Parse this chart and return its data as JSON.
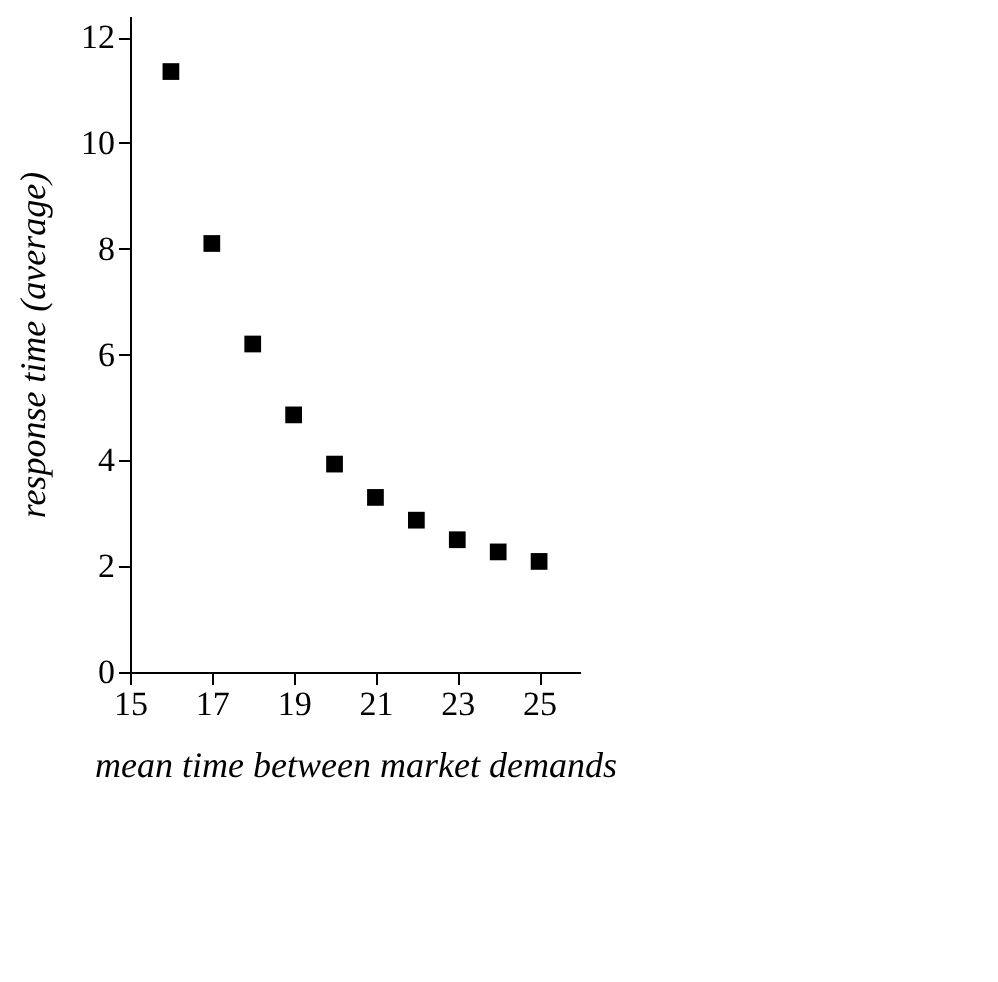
{
  "chart_data": {
    "type": "scatter",
    "xlabel": "mean time between market demands",
    "ylabel": "response time (average)",
    "x": [
      16,
      17,
      18,
      19,
      20,
      21,
      22,
      23,
      24,
      25
    ],
    "series": [
      {
        "color": "#000000",
        "values": [
          11.35,
          8.1,
          6.2,
          4.86,
          3.93,
          3.3,
          2.87,
          2.5,
          2.27,
          2.09
        ]
      }
    ],
    "xlim": [
      15,
      26
    ],
    "xticks": [
      15,
      17,
      19,
      21,
      23,
      25
    ],
    "ylim": [
      0,
      12.4
    ],
    "yticks": [
      0,
      2,
      4,
      6,
      8,
      10,
      12
    ],
    "marker": "square",
    "grid": false
  }
}
